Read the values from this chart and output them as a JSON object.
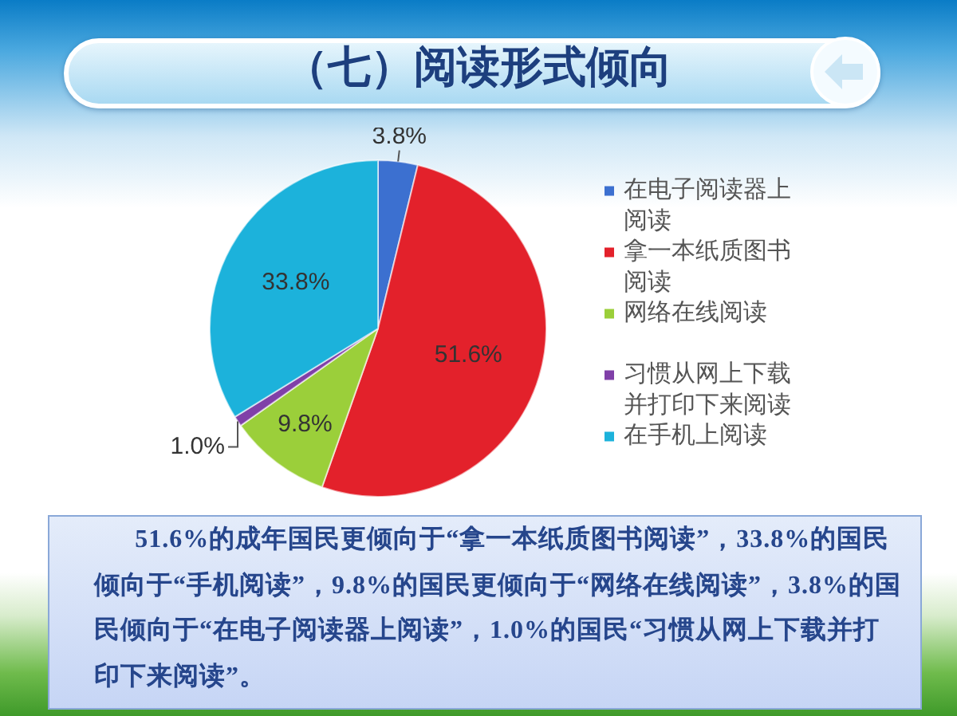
{
  "chart_data": {
    "type": "pie",
    "title": "（七）阅读形式倾向",
    "categories": [
      "在电子阅读器上阅读",
      "拿一本纸质图书阅读",
      "网络在线阅读",
      "习惯从网上下载并打印下来阅读",
      "在手机上阅读"
    ],
    "values": [
      3.8,
      51.6,
      9.8,
      1.0,
      33.8
    ],
    "colors": [
      "#3c70d0",
      "#e3212b",
      "#9bcf3a",
      "#8040a8",
      "#1cb2db"
    ],
    "value_labels": [
      "3.8%",
      "51.6%",
      "9.8%",
      "1.0%",
      "33.8%"
    ],
    "legend": "right",
    "annotations": [
      "51.6%的成年国民更倾向于“拿一本纸质图书阅读”，33.8%的国民倾向于“手机阅读”，9.8%的国民更倾向于“网络在线阅读”，3.8%的国民倾向于“在电子阅读器上阅读”，1.0%的国民“习惯从网上下载并打印下来阅读”。"
    ]
  }
}
